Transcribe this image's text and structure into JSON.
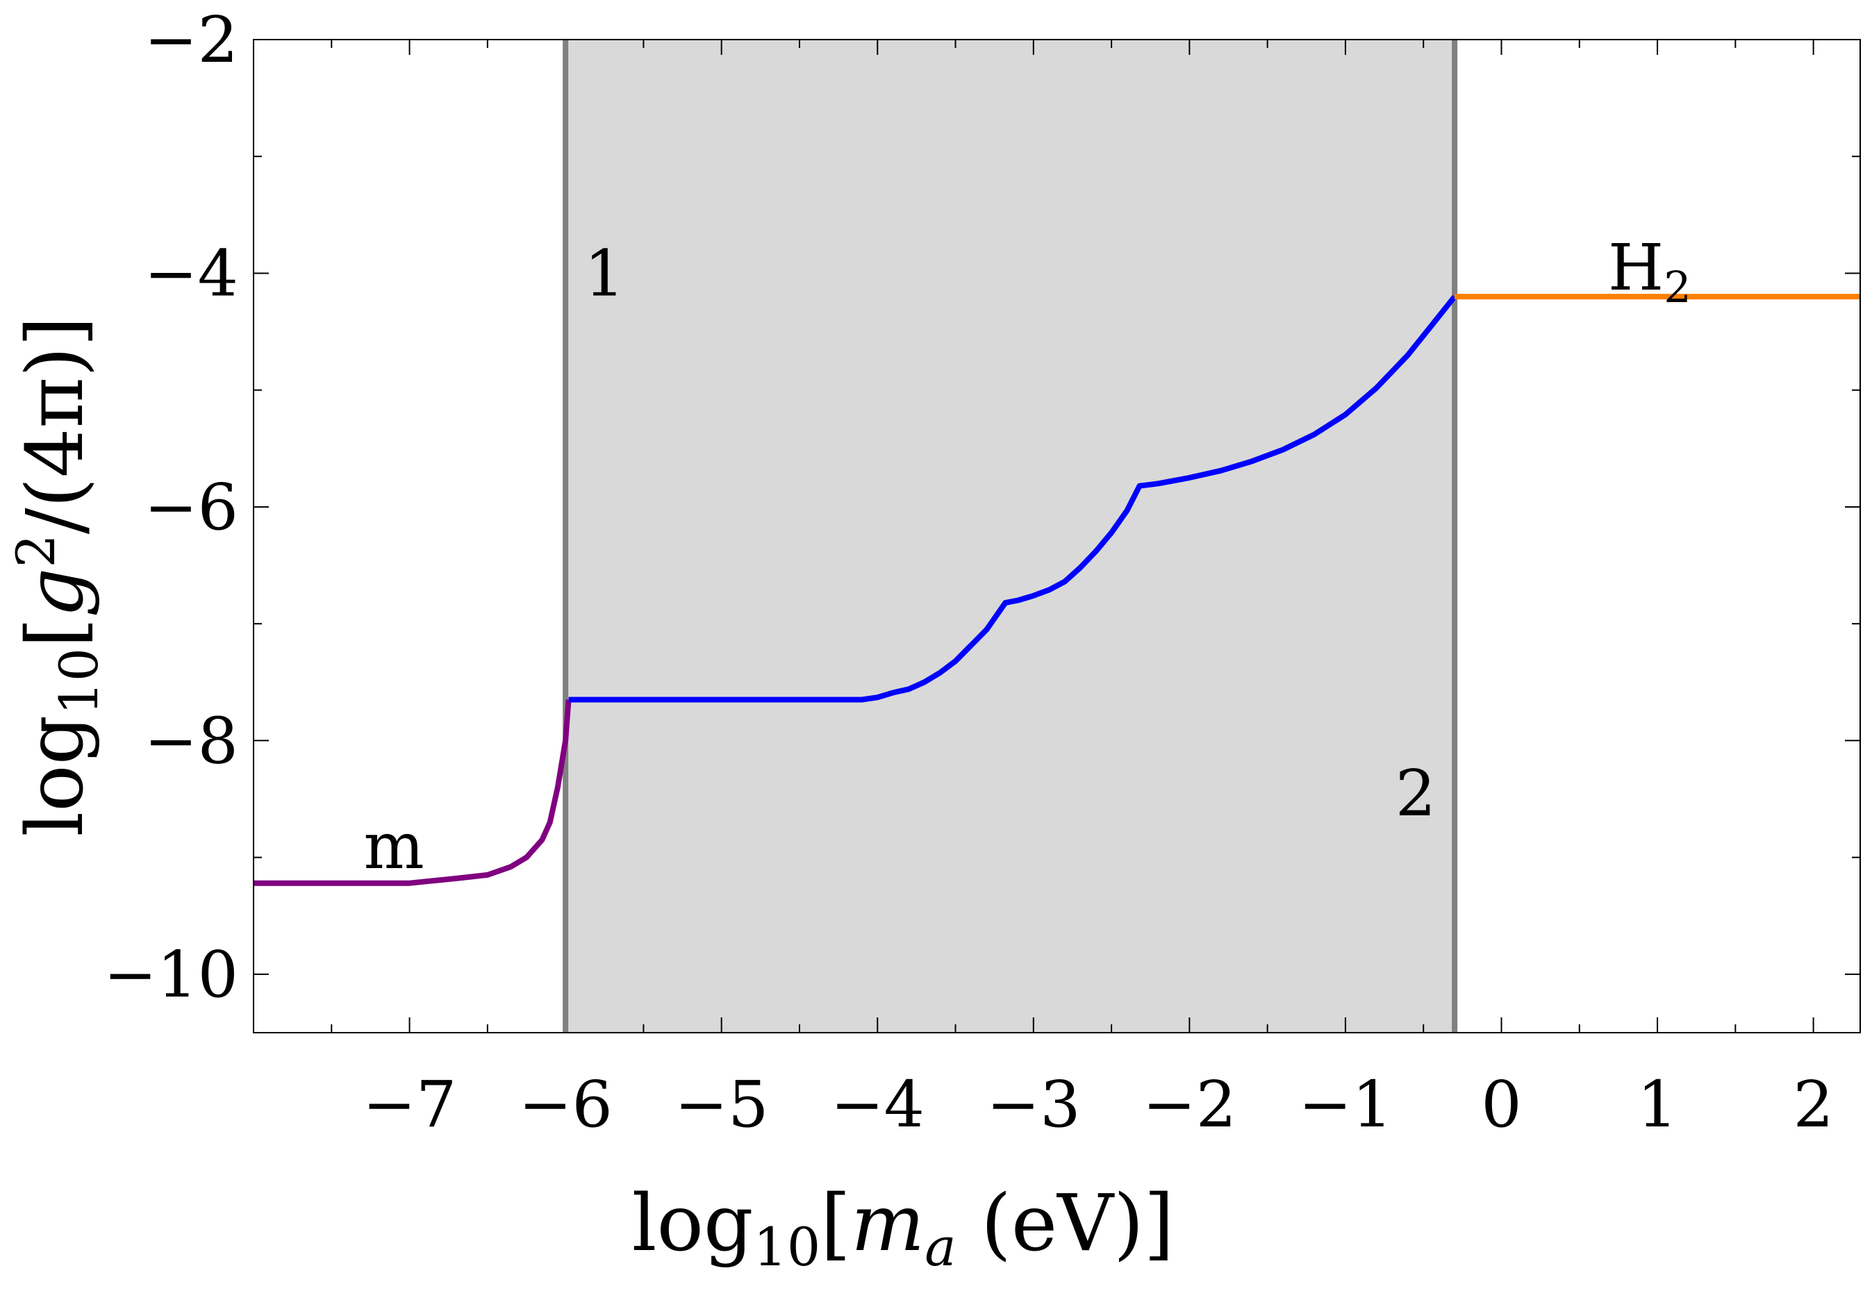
{
  "chart_data": {
    "type": "line",
    "xlim": [
      -8.0,
      2.3
    ],
    "ylim": [
      -10.5,
      -2.0
    ],
    "xlabel": {
      "prefix": "log",
      "sub": "10",
      "bracket_open": "[",
      "var": "m",
      "var_sub": "a",
      "unit": " (eV)",
      "bracket_close": "]"
    },
    "ylabel": {
      "prefix": "log",
      "sub": "10",
      "bracket_open": "[",
      "var": "g",
      "sup": "2",
      "rest": "/(4π)",
      "bracket_close": "]"
    },
    "x_ticks": [
      {
        "value": -7,
        "label": "−7"
      },
      {
        "value": -6,
        "label": "−6"
      },
      {
        "value": -5,
        "label": "−5"
      },
      {
        "value": -4,
        "label": "−4"
      },
      {
        "value": -3,
        "label": "−3"
      },
      {
        "value": -2,
        "label": "−2"
      },
      {
        "value": -1,
        "label": "−1"
      },
      {
        "value": 0,
        "label": "0"
      },
      {
        "value": 1,
        "label": "1"
      },
      {
        "value": 2,
        "label": "2"
      }
    ],
    "x_minor_ticks": [
      -7.5,
      -6.5,
      -5.5,
      -4.5,
      -3.5,
      -2.5,
      -1.5,
      -0.5,
      0.5,
      1.5
    ],
    "y_ticks": [
      {
        "value": -2,
        "label": "−2"
      },
      {
        "value": -4,
        "label": "−4"
      },
      {
        "value": -6,
        "label": "−6"
      },
      {
        "value": -8,
        "label": "−8"
      },
      {
        "value": -10,
        "label": "−10"
      }
    ],
    "y_minor_ticks": [
      -3,
      -5,
      -7,
      -9
    ],
    "shaded_region": {
      "x": [
        -6.0,
        -0.3
      ],
      "color": "#d9d9d9"
    },
    "vertical_lines": [
      {
        "x": -6.0,
        "color": "#808080",
        "label": "1",
        "label_x": -5.75,
        "label_y": -4.0
      },
      {
        "x": -0.3,
        "color": "#808080",
        "label": "2",
        "label_x": -0.55,
        "label_y": -8.45
      }
    ],
    "series": [
      {
        "color": "#800080",
        "label": "m",
        "label_pos": [
          -7.1,
          -8.9
        ],
        "points": [
          [
            -8.0,
            -9.22
          ],
          [
            -7.0,
            -9.22
          ],
          [
            -6.7,
            -9.18
          ],
          [
            -6.5,
            -9.15
          ],
          [
            -6.35,
            -9.08
          ],
          [
            -6.25,
            -9.0
          ],
          [
            -6.15,
            -8.85
          ],
          [
            -6.1,
            -8.7
          ],
          [
            -6.05,
            -8.4
          ],
          [
            -6.0,
            -8.0
          ],
          [
            -5.98,
            -7.65
          ]
        ]
      },
      {
        "color": "#0000ff",
        "label": "",
        "points": [
          [
            -5.98,
            -7.65
          ],
          [
            -5.0,
            -7.65
          ],
          [
            -4.1,
            -7.65
          ],
          [
            -4.0,
            -7.63
          ],
          [
            -3.9,
            -7.59
          ],
          [
            -3.8,
            -7.56
          ],
          [
            -3.7,
            -7.5
          ],
          [
            -3.6,
            -7.42
          ],
          [
            -3.5,
            -7.32
          ],
          [
            -3.3,
            -7.05
          ],
          [
            -3.18,
            -6.82
          ],
          [
            -3.1,
            -6.8
          ],
          [
            -3.0,
            -6.76
          ],
          [
            -2.9,
            -6.71
          ],
          [
            -2.8,
            -6.64
          ],
          [
            -2.7,
            -6.52
          ],
          [
            -2.6,
            -6.38
          ],
          [
            -2.5,
            -6.22
          ],
          [
            -2.4,
            -6.03
          ],
          [
            -2.32,
            -5.82
          ],
          [
            -2.2,
            -5.8
          ],
          [
            -2.0,
            -5.75
          ],
          [
            -1.8,
            -5.69
          ],
          [
            -1.6,
            -5.61
          ],
          [
            -1.4,
            -5.51
          ],
          [
            -1.2,
            -5.38
          ],
          [
            -1.0,
            -5.21
          ],
          [
            -0.8,
            -4.98
          ],
          [
            -0.6,
            -4.7
          ],
          [
            -0.45,
            -4.45
          ],
          [
            -0.3,
            -4.2
          ]
        ]
      },
      {
        "color": "#ff8000",
        "label": "H",
        "label_sub": "2",
        "label_pos": [
          0.95,
          -3.95
        ],
        "points": [
          [
            -0.3,
            -4.2
          ],
          [
            2.3,
            -4.2
          ]
        ]
      }
    ]
  }
}
